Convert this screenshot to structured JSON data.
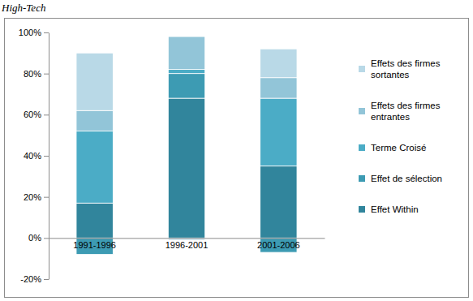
{
  "chart_data": {
    "type": "bar",
    "title": "High-Tech",
    "categories": [
      "1991-1996",
      "1996-2001",
      "2001-2006"
    ],
    "series": [
      {
        "name": "Effet Within",
        "color": "#31859c",
        "values": [
          17,
          68,
          35
        ]
      },
      {
        "name": "Effet de sélection",
        "color": "#3d9bb3",
        "values": [
          -8,
          12,
          -7
        ]
      },
      {
        "name": "Terme Croisé",
        "color": "#4bacc6",
        "values": [
          35,
          2,
          33
        ]
      },
      {
        "name": "Effets des firmes entrantes",
        "color": "#92c5d8",
        "values": [
          10,
          16,
          10
        ]
      },
      {
        "name": "Effets des firmes sortantes",
        "color": "#b9d9e7",
        "values": [
          28,
          -1,
          14
        ]
      }
    ],
    "ylim": [
      -20,
      100
    ],
    "yticks": [
      {
        "value": -20,
        "label": "-20%"
      },
      {
        "value": 0,
        "label": "0%"
      },
      {
        "value": 20,
        "label": "20%"
      },
      {
        "value": 40,
        "label": "40%"
      },
      {
        "value": 60,
        "label": "60%"
      },
      {
        "value": 80,
        "label": "80%"
      },
      {
        "value": 100,
        "label": "100%"
      }
    ],
    "stacked": true,
    "legend": "right",
    "grid": false
  }
}
